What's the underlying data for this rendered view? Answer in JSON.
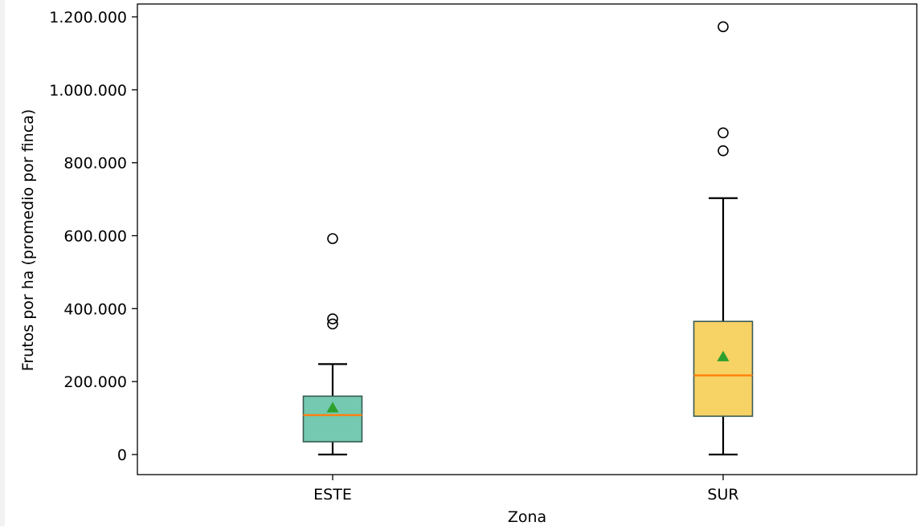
{
  "chart_data": {
    "type": "box",
    "xlabel": "Zona",
    "ylabel": "Frutos por ha (promedio por finca)",
    "ylim": [
      -55000,
      1250000
    ],
    "yticks": [
      0,
      200000,
      400000,
      600000,
      800000,
      1000000,
      1200000
    ],
    "ytick_labels": [
      "0",
      "200.000",
      "400.000",
      "600.000",
      "800.000",
      "1.000.000",
      "1.200.000"
    ],
    "categories": [
      "ESTE",
      "SUR"
    ],
    "boxes": [
      {
        "name": "ESTE",
        "color": "#74c9b0",
        "whisker_low": 0,
        "q1": 35000,
        "median": 108000,
        "q3": 160000,
        "whisker_high": 248000,
        "mean": 128000,
        "outliers": [
          358000,
          372000,
          592000
        ]
      },
      {
        "name": "SUR",
        "color": "#f7d264",
        "whisker_low": 0,
        "q1": 105000,
        "median": 217000,
        "q3": 365000,
        "whisker_high": 703000,
        "mean": 268000,
        "outliers": [
          833000,
          882000,
          1173000
        ]
      }
    ],
    "median_color": "#ff7f0e",
    "mean_color": "#2ca02c",
    "grid": false
  }
}
